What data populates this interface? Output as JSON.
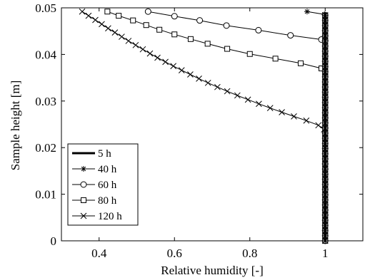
{
  "chart_data": {
    "type": "line",
    "xlabel": "Relative humidity [-]",
    "ylabel": "Sample height [m]",
    "xlim": [
      0.3,
      1.1
    ],
    "ylim": [
      0,
      0.05
    ],
    "xticks": [
      0.4,
      0.6,
      0.8,
      1
    ],
    "xtick_labels": [
      "0.4",
      "0.6",
      "0.8",
      "1"
    ],
    "yticks": [
      0,
      0.01,
      0.02,
      0.03,
      0.04,
      0.05
    ],
    "ytick_labels": [
      "0",
      "0.01",
      "0.02",
      "0.03",
      "0.04",
      "0.05"
    ],
    "grid": false,
    "legend_position": "lower-left",
    "series": [
      {
        "name": "5 h",
        "marker": "none",
        "line_width": "thick",
        "points": [
          [
            1,
            0
          ],
          [
            1,
            0.049
          ]
        ]
      },
      {
        "name": "40 h",
        "marker": "star",
        "line_width": "thin",
        "points": [
          [
            0.952,
            0.0492
          ],
          [
            0.998,
            0.0486
          ],
          [
            1,
            0.048
          ]
        ]
      },
      {
        "name": "60 h",
        "marker": "circle",
        "line_width": "thin",
        "points": [
          [
            0.53,
            0.0492
          ],
          [
            0.6,
            0.0482
          ],
          [
            0.667,
            0.0473
          ],
          [
            0.738,
            0.0462
          ],
          [
            0.823,
            0.0452
          ],
          [
            0.908,
            0.0441
          ],
          [
            0.99,
            0.0432
          ],
          [
            1,
            0.043
          ]
        ]
      },
      {
        "name": "80 h",
        "marker": "square",
        "line_width": "thin",
        "points": [
          [
            0.422,
            0.0492
          ],
          [
            0.452,
            0.0483
          ],
          [
            0.49,
            0.0473
          ],
          [
            0.525,
            0.0463
          ],
          [
            0.56,
            0.0453
          ],
          [
            0.6,
            0.0443
          ],
          [
            0.643,
            0.0433
          ],
          [
            0.688,
            0.0423
          ],
          [
            0.74,
            0.0412
          ],
          [
            0.8,
            0.0401
          ],
          [
            0.868,
            0.0391
          ],
          [
            0.935,
            0.0381
          ],
          [
            0.99,
            0.037
          ],
          [
            1,
            0.036
          ]
        ]
      },
      {
        "name": "120 h",
        "marker": "x",
        "line_width": "thin",
        "points": [
          [
            0.355,
            0.0492
          ],
          [
            0.372,
            0.0483
          ],
          [
            0.39,
            0.0474
          ],
          [
            0.407,
            0.0465
          ],
          [
            0.424,
            0.0456
          ],
          [
            0.442,
            0.0447
          ],
          [
            0.46,
            0.0438
          ],
          [
            0.478,
            0.0429
          ],
          [
            0.497,
            0.042
          ],
          [
            0.516,
            0.0411
          ],
          [
            0.535,
            0.0402
          ],
          [
            0.555,
            0.0393
          ],
          [
            0.576,
            0.0384
          ],
          [
            0.597,
            0.0375
          ],
          [
            0.619,
            0.0366
          ],
          [
            0.642,
            0.0357
          ],
          [
            0.665,
            0.0348
          ],
          [
            0.689,
            0.0339
          ],
          [
            0.714,
            0.033
          ],
          [
            0.74,
            0.0321
          ],
          [
            0.767,
            0.0312
          ],
          [
            0.795,
            0.0303
          ],
          [
            0.824,
            0.0294
          ],
          [
            0.854,
            0.0285
          ],
          [
            0.885,
            0.0276
          ],
          [
            0.917,
            0.0267
          ],
          [
            0.95,
            0.0258
          ],
          [
            0.982,
            0.0248
          ],
          [
            0.997,
            0.0239
          ],
          [
            1,
            0.023
          ]
        ]
      }
    ],
    "colors": {
      "line": "#000000",
      "background": "#ffffff",
      "axes": "#000000"
    }
  }
}
